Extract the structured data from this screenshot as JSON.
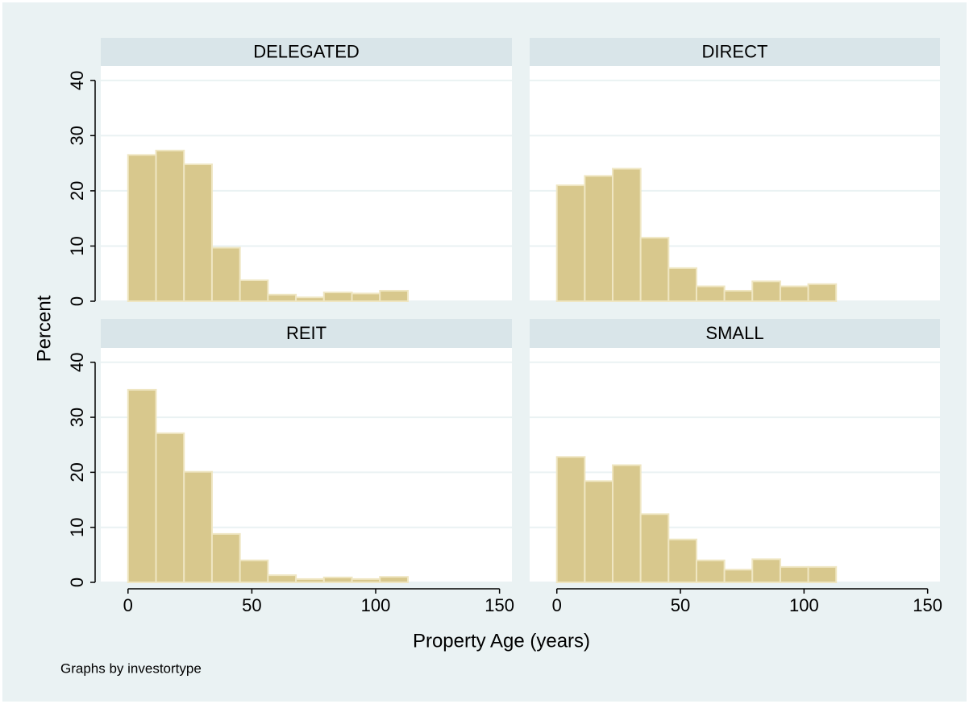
{
  "y_label": "Percent",
  "x_label": "Property Age (years)",
  "note": "Graphs by investortype",
  "chart_data": [
    {
      "type": "histogram",
      "title": "DELEGATED",
      "color": "#d8c88d",
      "grid": true,
      "bins": [
        0,
        11.3,
        22.6,
        33.9,
        45.2,
        56.5,
        67.8,
        79.1,
        90.4,
        101.7,
        113
      ],
      "values": [
        26.5,
        27.3,
        24.8,
        9.7,
        3.8,
        1.2,
        0.7,
        1.6,
        1.4,
        1.9
      ],
      "xlim": [
        -11,
        155
      ],
      "ylim": [
        0,
        42.6
      ],
      "yticks": [
        0,
        10,
        20,
        30,
        40
      ]
    },
    {
      "type": "histogram",
      "title": "DIRECT",
      "color": "#d8c88d",
      "grid": true,
      "bins": [
        0,
        11.3,
        22.6,
        33.9,
        45.2,
        56.5,
        67.8,
        79.1,
        90.4,
        101.7,
        113
      ],
      "values": [
        21,
        22.7,
        24,
        11.5,
        6,
        2.7,
        1.9,
        3.6,
        2.7,
        3.1
      ],
      "xlim": [
        -11,
        155
      ],
      "ylim": [
        0,
        42.6
      ],
      "yticks": [
        0,
        10,
        20,
        30,
        40
      ]
    },
    {
      "type": "histogram",
      "title": "REIT",
      "color": "#d8c88d",
      "grid": true,
      "bins": [
        0,
        11.3,
        22.6,
        33.9,
        45.2,
        56.5,
        67.8,
        79.1,
        90.4,
        101.7,
        113
      ],
      "values": [
        35,
        27.1,
        20.1,
        8.8,
        4,
        1.3,
        0.6,
        0.9,
        0.6,
        1
      ],
      "xlim": [
        -11,
        155
      ],
      "ylim": [
        0,
        42.6
      ],
      "xticks": [
        0,
        50,
        100,
        150
      ],
      "yticks": [
        0,
        10,
        20,
        30,
        40
      ]
    },
    {
      "type": "histogram",
      "title": "SMALL",
      "color": "#d8c88d",
      "grid": true,
      "bins": [
        0,
        11.3,
        22.6,
        33.9,
        45.2,
        56.5,
        67.8,
        79.1,
        90.4,
        101.7,
        113
      ],
      "values": [
        22.8,
        18.4,
        21.3,
        12.4,
        7.8,
        4,
        2.3,
        4.2,
        2.8,
        2.8
      ],
      "xlim": [
        -11,
        155
      ],
      "ylim": [
        0,
        42.6
      ],
      "xticks": [
        0,
        50,
        100,
        150
      ],
      "yticks": [
        0,
        10,
        20,
        30,
        40
      ]
    }
  ]
}
